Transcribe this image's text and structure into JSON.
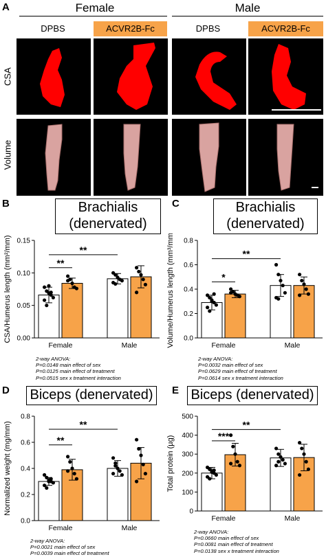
{
  "panel_labels": {
    "a": "A",
    "b": "B",
    "c": "C",
    "d": "D",
    "e": "E"
  },
  "sex_headers": {
    "female": "Female",
    "male": "Male"
  },
  "column_headers": [
    "DPBS",
    "ACVR2B-Fc",
    "DPBS",
    "ACVR2B-Fc"
  ],
  "row_labels": {
    "csa": "CSA",
    "volume": "Volume"
  },
  "colors": {
    "treated": "#f7a349",
    "control": "#ffffff",
    "csa_red": "#ff0000",
    "muscle_pink": "#d9a3a0",
    "image_bg": "#000000"
  },
  "panel_b": {
    "title_line1": "Brachialis",
    "title_line2": "(denervated)",
    "anova": [
      "2-way ANOVA:",
      "P=0.0148 main effect of sex",
      "P=0.0125 main effect of treatment",
      "P=0.0515 sex x treatment interaction"
    ]
  },
  "panel_c": {
    "title_line1": "Brachialis",
    "title_line2": "(denervated)",
    "anova": [
      "2-way ANOVA:",
      "P=0.0032 main effect of sex",
      "P=0.0629 main effect of treatment",
      "P=0.0614 sex x treatment interaction"
    ]
  },
  "panel_d": {
    "title": "Biceps (denervated)",
    "anova": [
      "2-way ANOVA:",
      "P=0.0021 main effect of sex",
      "P=0.0039 main effect of treatment"
    ]
  },
  "panel_e": {
    "title": "Biceps (denervated)",
    "anova": [
      "2-way ANOVA:",
      "P=0.0660 main effect of sex",
      "P=0.0081 main effect of treatment",
      "P=0.0138 sex x treatment interaction"
    ]
  },
  "chart_data": [
    {
      "type": "bar",
      "panel": "B",
      "title": "Brachialis (denervated)",
      "ylabel": "CSA/Humerus length (mm²/mm)",
      "categories": [
        "Female",
        "Male"
      ],
      "ylim": [
        0,
        0.15
      ],
      "yticks": [
        "0.00",
        "0.05",
        "0.10",
        "0.15"
      ],
      "series": [
        {
          "color": "#ffffff",
          "values": [
            0.066,
            0.091
          ],
          "err": [
            0.012,
            0.008
          ],
          "points": [
            [
              0.078,
              0.072,
              0.069,
              0.066,
              0.062,
              0.058,
              0.05,
              0.08,
              0.07
            ],
            [
              0.1,
              0.097,
              0.093,
              0.09,
              0.088,
              0.085,
              0.083
            ]
          ]
        },
        {
          "color": "#f7a349",
          "values": [
            0.084,
            0.094
          ],
          "err": [
            0.008,
            0.017
          ],
          "points": [
            [
              0.095,
              0.09,
              0.084,
              0.078,
              0.076,
              0.088
            ],
            [
              0.108,
              0.102,
              0.097,
              0.09,
              0.082,
              0.07
            ]
          ]
        }
      ],
      "sig": [
        {
          "from": [
            0,
            0
          ],
          "to": [
            0,
            1
          ],
          "label": "**",
          "y": 0.108
        },
        {
          "from": [
            0,
            0
          ],
          "to": [
            1,
            0
          ],
          "label": "**",
          "y": 0.128
        }
      ]
    },
    {
      "type": "bar",
      "panel": "C",
      "title": "Brachialis (denervated)",
      "ylabel": "Volume/Humerus length (mm³/mm)",
      "categories": [
        "Female",
        "Male"
      ],
      "ylim": [
        0,
        0.8
      ],
      "yticks": [
        "0.0",
        "0.2",
        "0.4",
        "0.6",
        "0.8"
      ],
      "series": [
        {
          "color": "#ffffff",
          "values": [
            0.29,
            0.43
          ],
          "err": [
            0.06,
            0.09
          ],
          "points": [
            [
              0.35,
              0.33,
              0.31,
              0.29,
              0.27,
              0.25,
              0.22,
              0.3,
              0.36
            ],
            [
              0.6,
              0.52,
              0.47,
              0.43,
              0.37,
              0.33,
              0.32
            ]
          ]
        },
        {
          "color": "#f7a349",
          "values": [
            0.36,
            0.43
          ],
          "err": [
            0.03,
            0.07
          ],
          "points": [
            [
              0.4,
              0.38,
              0.36,
              0.35,
              0.34,
              0.37
            ],
            [
              0.52,
              0.47,
              0.44,
              0.4,
              0.36,
              0.35
            ]
          ]
        }
      ],
      "sig": [
        {
          "from": [
            0,
            0
          ],
          "to": [
            0,
            1
          ],
          "label": "*",
          "y": 0.46
        },
        {
          "from": [
            0,
            0
          ],
          "to": [
            1,
            0
          ],
          "label": "**",
          "y": 0.65
        }
      ]
    },
    {
      "type": "bar",
      "panel": "D",
      "title": "Biceps (denervated)",
      "ylabel": "Normalized weight (mg/mm)",
      "categories": [
        "Female",
        "Male"
      ],
      "ylim": [
        0,
        0.8
      ],
      "yticks": [
        "0.0",
        "0.2",
        "0.4",
        "0.6",
        "0.8"
      ],
      "series": [
        {
          "color": "#ffffff",
          "values": [
            0.3,
            0.4
          ],
          "err": [
            0.03,
            0.06
          ],
          "points": [
            [
              0.35,
              0.33,
              0.31,
              0.3,
              0.29,
              0.27,
              0.25,
              0.3,
              0.32
            ],
            [
              0.48,
              0.44,
              0.4,
              0.38,
              0.35,
              0.36,
              0.42
            ]
          ]
        },
        {
          "color": "#f7a349",
          "values": [
            0.39,
            0.44
          ],
          "err": [
            0.08,
            0.12
          ],
          "points": [
            [
              0.49,
              0.45,
              0.4,
              0.36,
              0.32,
              0.38
            ],
            [
              0.62,
              0.55,
              0.5,
              0.43,
              0.36,
              0.3
            ]
          ]
        }
      ],
      "sig": [
        {
          "from": [
            0,
            0
          ],
          "to": [
            0,
            1
          ],
          "label": "**",
          "y": 0.58
        },
        {
          "from": [
            0,
            0
          ],
          "to": [
            1,
            0
          ],
          "label": "**",
          "y": 0.7
        }
      ]
    },
    {
      "type": "bar",
      "panel": "E",
      "title": "Biceps (denervated)",
      "ylabel": "Total protein (µg)",
      "categories": [
        "Female",
        "Male"
      ],
      "ylim": [
        0,
        500
      ],
      "yticks": [
        "0",
        "100",
        "200",
        "300",
        "400",
        "500"
      ],
      "series": [
        {
          "color": "#ffffff",
          "values": [
            200,
            280
          ],
          "err": [
            30,
            45
          ],
          "points": [
            [
              230,
              220,
              210,
              200,
              190,
              180,
              170,
              205,
              215
            ],
            [
              330,
              300,
              285,
              270,
              250,
              240,
              260
            ]
          ]
        },
        {
          "color": "#f7a349",
          "values": [
            297,
            282
          ],
          "err": [
            60,
            70
          ],
          "points": [
            [
              400,
              340,
              300,
              260,
              240,
              250
            ],
            [
              360,
              330,
              300,
              260,
              220,
              190
            ]
          ]
        }
      ],
      "sig": [
        {
          "from": [
            0,
            0
          ],
          "to": [
            0,
            1
          ],
          "label": "***",
          "y": 370
        },
        {
          "from": [
            0,
            0
          ],
          "to": [
            1,
            0
          ],
          "label": "**",
          "y": 430
        }
      ]
    }
  ]
}
